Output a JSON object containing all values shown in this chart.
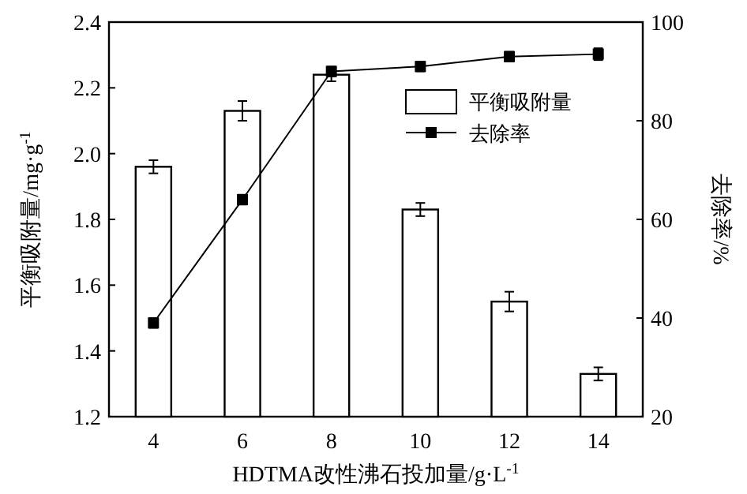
{
  "chart_data": {
    "type": "bar",
    "xlabel": "HDTMA改性沸石投加量/g·L$^{-1}$",
    "ylabel": "平衡吸附量/mg·g$^{-1}$",
    "y2label": "去除率/%",
    "categories": [
      "4",
      "6",
      "8",
      "10",
      "12",
      "14"
    ],
    "series": [
      {
        "name": "平衡吸附量",
        "color": "#ffffff",
        "values": [
          1.96,
          2.13,
          2.24,
          1.83,
          1.55,
          1.33
        ],
        "errors": [
          0.02,
          0.03,
          0.02,
          0.02,
          0.03,
          0.02
        ]
      },
      {
        "name": "去除率",
        "type": "line",
        "axis": "y2",
        "color": "#000000",
        "marker": "square",
        "values": [
          39,
          64,
          90,
          91,
          93,
          93.5
        ],
        "errors": [
          1,
          1,
          1,
          1,
          1,
          1.2
        ]
      }
    ],
    "ylim": [
      1.2,
      2.4
    ],
    "yticks": [
      1.2,
      1.4,
      1.6,
      1.8,
      {
        "value": 2,
        "label": "2.0"
      },
      2.2,
      2.4
    ],
    "y2lim": [
      20,
      100
    ],
    "y2ticks": [
      20,
      40,
      60,
      80,
      100
    ],
    "legend": "top right",
    "grid": false
  }
}
